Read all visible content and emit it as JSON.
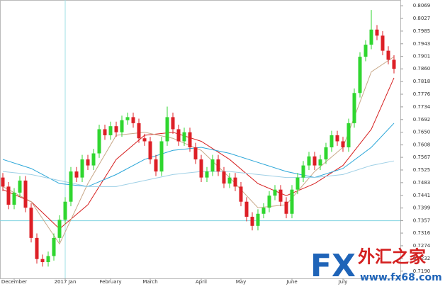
{
  "chart_data": {
    "type": "candlestick",
    "categories": [
      null,
      null,
      "December",
      null,
      null,
      null,
      null,
      null,
      null,
      null,
      null,
      "2017 Jan",
      null,
      null,
      null,
      null,
      null,
      null,
      null,
      "February",
      null,
      null,
      null,
      null,
      null,
      null,
      "March",
      null,
      null,
      null,
      null,
      null,
      null,
      null,
      null,
      "April",
      null,
      null,
      null,
      null,
      null,
      null,
      "May",
      null,
      null,
      null,
      null,
      null,
      null,
      null,
      null,
      "June",
      null,
      null,
      null,
      null,
      null,
      null,
      null,
      null,
      "July",
      null,
      null,
      null,
      null,
      null,
      null,
      null,
      null,
      null
    ],
    "open": [
      0.75,
      0.747,
      0.741,
      0.745,
      0.749,
      0.74,
      0.73,
      0.723,
      0.722,
      0.724,
      0.73,
      0.736,
      0.742,
      0.752,
      0.75,
      0.756,
      0.754,
      0.758,
      0.766,
      0.764,
      0.767,
      0.765,
      0.769,
      0.77,
      0.768,
      0.763,
      0.762,
      0.756,
      0.752,
      0.762,
      0.77,
      0.766,
      0.762,
      0.765,
      0.76,
      0.756,
      0.75,
      0.752,
      0.756,
      0.752,
      0.748,
      0.75,
      0.747,
      0.742,
      0.737,
      0.734,
      0.738,
      0.74,
      0.744,
      0.746,
      0.742,
      0.738,
      0.746,
      0.75,
      0.754,
      0.757,
      0.754,
      0.756,
      0.76,
      0.764,
      0.762,
      0.76,
      0.768,
      0.778,
      0.79,
      0.794,
      0.799,
      0.797,
      0.792,
      0.789
    ],
    "high": [
      0.7515,
      0.7485,
      0.7465,
      0.7505,
      0.7505,
      0.7415,
      0.7315,
      0.7245,
      0.7255,
      0.7315,
      0.7375,
      0.7435,
      0.7535,
      0.7535,
      0.7575,
      0.7575,
      0.7595,
      0.7675,
      0.7675,
      0.7685,
      0.7685,
      0.7705,
      0.7715,
      0.7715,
      0.7695,
      0.7645,
      0.7635,
      0.7575,
      0.7635,
      0.7735,
      0.7715,
      0.7675,
      0.7665,
      0.7665,
      0.7615,
      0.7575,
      0.7535,
      0.7575,
      0.7575,
      0.7535,
      0.7515,
      0.7515,
      0.7485,
      0.7435,
      0.7385,
      0.7395,
      0.7415,
      0.7455,
      0.7475,
      0.7475,
      0.7435,
      0.7475,
      0.7515,
      0.7555,
      0.7585,
      0.7585,
      0.7575,
      0.7615,
      0.7655,
      0.7655,
      0.7635,
      0.7695,
      0.7795,
      0.7915,
      0.7955,
      0.8055,
      0.8005,
      0.7985,
      0.7935,
      0.7905
    ],
    "low": [
      0.7455,
      0.7395,
      0.7395,
      0.7435,
      0.7385,
      0.7285,
      0.7215,
      0.7205,
      0.7205,
      0.7225,
      0.7285,
      0.7345,
      0.7405,
      0.7485,
      0.7485,
      0.7525,
      0.7525,
      0.7565,
      0.7625,
      0.7625,
      0.7635,
      0.7635,
      0.7675,
      0.7665,
      0.7615,
      0.7605,
      0.7545,
      0.7505,
      0.7505,
      0.7605,
      0.7645,
      0.7605,
      0.7605,
      0.7585,
      0.7545,
      0.7485,
      0.7485,
      0.7505,
      0.7505,
      0.7465,
      0.7465,
      0.7455,
      0.7405,
      0.7355,
      0.7325,
      0.7325,
      0.7365,
      0.7385,
      0.7425,
      0.7405,
      0.7365,
      0.7365,
      0.7445,
      0.7485,
      0.7525,
      0.7525,
      0.7525,
      0.7545,
      0.7585,
      0.7605,
      0.7585,
      0.7585,
      0.7665,
      0.7765,
      0.7885,
      0.7925,
      0.7955,
      0.7905,
      0.7875,
      0.7845
    ],
    "close": [
      0.747,
      0.741,
      0.745,
      0.749,
      0.74,
      0.73,
      0.723,
      0.722,
      0.724,
      0.73,
      0.736,
      0.742,
      0.752,
      0.75,
      0.756,
      0.754,
      0.758,
      0.766,
      0.764,
      0.767,
      0.765,
      0.769,
      0.77,
      0.768,
      0.763,
      0.762,
      0.756,
      0.752,
      0.762,
      0.77,
      0.766,
      0.762,
      0.765,
      0.76,
      0.756,
      0.75,
      0.752,
      0.756,
      0.752,
      0.748,
      0.75,
      0.747,
      0.742,
      0.737,
      0.734,
      0.738,
      0.74,
      0.744,
      0.746,
      0.742,
      0.738,
      0.746,
      0.75,
      0.754,
      0.757,
      0.754,
      0.756,
      0.76,
      0.764,
      0.762,
      0.76,
      0.768,
      0.778,
      0.79,
      0.794,
      0.799,
      0.797,
      0.792,
      0.789,
      0.786
    ],
    "up_color": "#2fd62f",
    "down_color": "#dd1f26",
    "lines": [
      {
        "color": "#d62020",
        "x": [
          0,
          5,
          10,
          15,
          20,
          25,
          30,
          35,
          40,
          45,
          50,
          55,
          60,
          65,
          69
        ],
        "values": [
          0.746,
          0.742,
          0.733,
          0.741,
          0.756,
          0.764,
          0.765,
          0.762,
          0.756,
          0.748,
          0.744,
          0.748,
          0.754,
          0.766,
          0.783
        ]
      },
      {
        "color": "#c8a888",
        "x": [
          0,
          5,
          10,
          15,
          20,
          25,
          30,
          35,
          40,
          45,
          50,
          55,
          60,
          65,
          69
        ],
        "values": [
          0.747,
          0.742,
          0.728,
          0.748,
          0.764,
          0.765,
          0.763,
          0.759,
          0.75,
          0.74,
          0.741,
          0.752,
          0.76,
          0.785,
          0.79
        ]
      },
      {
        "color": "#2aa6d8",
        "x": [
          0,
          5,
          10,
          15,
          20,
          25,
          30,
          35,
          40,
          45,
          50,
          55,
          60,
          65,
          69
        ],
        "values": [
          0.756,
          0.753,
          0.748,
          0.747,
          0.751,
          0.756,
          0.759,
          0.76,
          0.758,
          0.755,
          0.752,
          0.75,
          0.753,
          0.76,
          0.768
        ]
      },
      {
        "color": "#9fd0e6",
        "x": [
          0,
          5,
          10,
          15,
          20,
          25,
          30,
          35,
          40,
          45,
          50,
          55,
          60,
          65,
          69
        ],
        "values": [
          0.752,
          0.751,
          0.749,
          0.747,
          0.747,
          0.749,
          0.751,
          0.752,
          0.752,
          0.751,
          0.75,
          0.75,
          0.751,
          0.754,
          0.7555
        ]
      }
    ],
    "hline": 0.7357,
    "hline_color": "#7fd3e0",
    "vline": 11,
    "vline_color": "#9fdfe6",
    "ylim": [
      0.7166,
      0.8088
    ],
    "yticks": [
      0.8069,
      0.8027,
      0.7985,
      0.7943,
      0.7901,
      {
        "value": 0.786,
        "label": "0.7860"
      },
      0.7818,
      0.7776,
      0.7734,
      0.7692,
      {
        "value": 0.765,
        "label": "0.7650"
      },
      0.7608,
      0.7567,
      0.7525,
      0.7483,
      0.7441,
      0.7399,
      0.7357,
      0.7316,
      0.7274,
      0.7232,
      {
        "value": 0.719,
        "label": "0.7190"
      }
    ]
  },
  "watermark": {
    "logo": "FX",
    "name": "外汇之家",
    "url": "www.fx68.com"
  }
}
